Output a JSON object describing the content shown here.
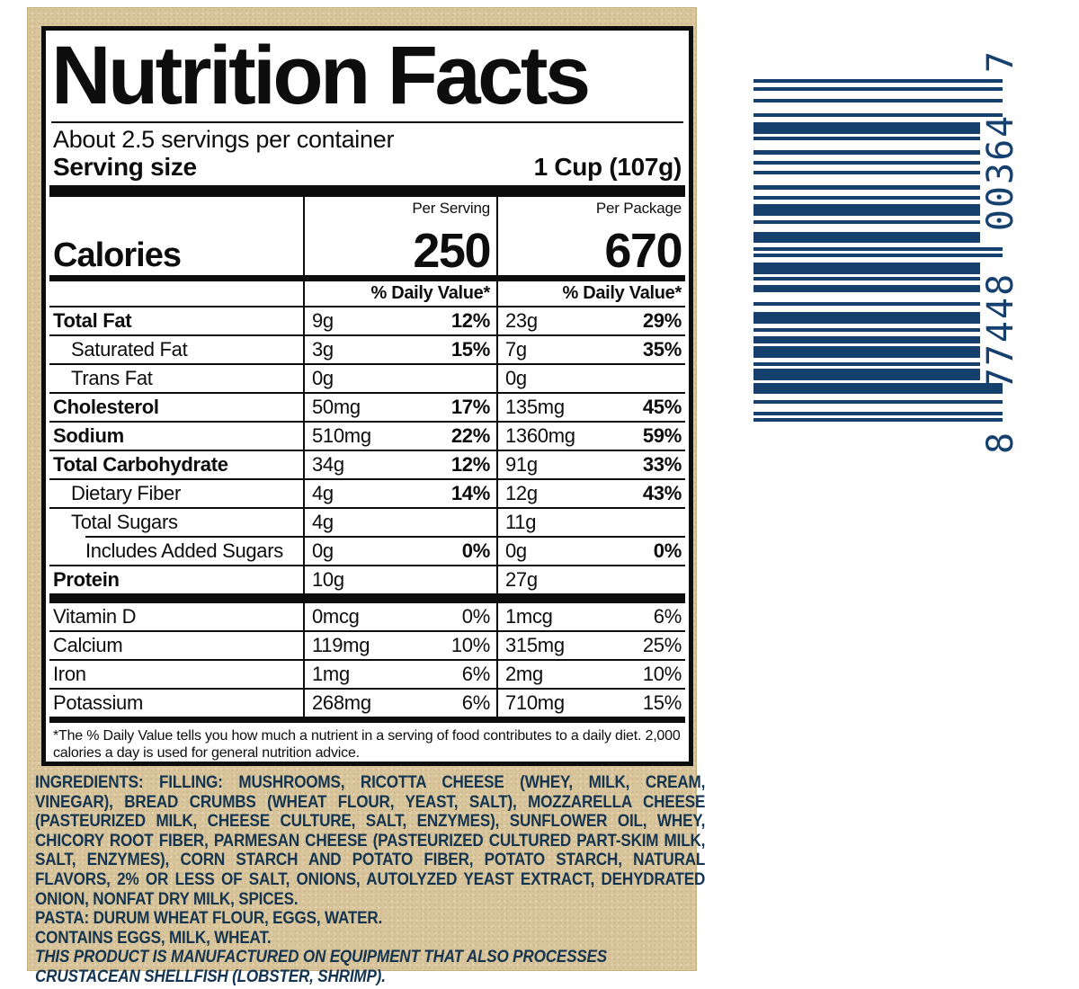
{
  "label": {
    "title": "Nutrition Facts",
    "servings_per_container": "About 2.5 servings per container",
    "serving_size_label": "Serving size",
    "serving_size_value": "1 Cup (107g)",
    "col_headers": {
      "serving": "Per Serving",
      "package": "Per Package"
    },
    "calories_label": "Calories",
    "calories_serving": "250",
    "calories_package": "670",
    "daily_value_header_serving": "% Daily Value*",
    "daily_value_header_package": "% Daily Value*",
    "rows": [
      {
        "name": "Total Fat",
        "s_amt": "9g",
        "s_dv": "12%",
        "p_amt": "23g",
        "p_dv": "29%"
      },
      {
        "name": "Saturated Fat",
        "s_amt": "3g",
        "s_dv": "15%",
        "p_amt": "7g",
        "p_dv": "35%"
      },
      {
        "name": "Trans Fat",
        "s_amt": "0g",
        "s_dv": "",
        "p_amt": "0g",
        "p_dv": ""
      },
      {
        "name": "Cholesterol",
        "s_amt": "50mg",
        "s_dv": "17%",
        "p_amt": "135mg",
        "p_dv": "45%"
      },
      {
        "name": "Sodium",
        "s_amt": "510mg",
        "s_dv": "22%",
        "p_amt": "1360mg",
        "p_dv": "59%"
      },
      {
        "name": "Total Carbohydrate",
        "s_amt": "34g",
        "s_dv": "12%",
        "p_amt": "91g",
        "p_dv": "33%"
      },
      {
        "name": "Dietary Fiber",
        "s_amt": "4g",
        "s_dv": "14%",
        "p_amt": "12g",
        "p_dv": "43%"
      },
      {
        "name": "Total Sugars",
        "s_amt": "4g",
        "s_dv": "",
        "p_amt": "11g",
        "p_dv": ""
      },
      {
        "name": "Includes Added Sugars",
        "s_amt": "0g",
        "s_dv": "0%",
        "p_amt": "0g",
        "p_dv": "0%"
      },
      {
        "name": "Protein",
        "s_amt": "10g",
        "s_dv": "",
        "p_amt": "27g",
        "p_dv": ""
      }
    ],
    "vitamin_rows": [
      {
        "name": "Vitamin D",
        "s_amt": "0mcg",
        "s_dv": "0%",
        "p_amt": "1mcg",
        "p_dv": "6%"
      },
      {
        "name": "Calcium",
        "s_amt": "119mg",
        "s_dv": "10%",
        "p_amt": "315mg",
        "p_dv": "25%"
      },
      {
        "name": "Iron",
        "s_amt": "1mg",
        "s_dv": "6%",
        "p_amt": "2mg",
        "p_dv": "10%"
      },
      {
        "name": "Potassium",
        "s_amt": "268mg",
        "s_dv": "6%",
        "p_amt": "710mg",
        "p_dv": "15%"
      }
    ],
    "footnote": "*The % Daily Value tells you how much a nutrient in a serving of food contributes to a daily diet. 2,000 calories a day is used for general nutrition advice."
  },
  "ingredients": {
    "heading": "INGREDIENTS:",
    "filling_label": "FILLING:",
    "filling_text": "MUSHROOMS, RICOTTA CHEESE (WHEY, MILK, CREAM, VINEGAR), BREAD CRUMBS (WHEAT FLOUR, YEAST, SALT), MOZZARELLA CHEESE (PASTEURIZED MILK, CHEESE CULTURE, SALT, ENZYMES), SUNFLOWER OIL, WHEY, CHICORY ROOT FIBER, PARMESAN CHEESE (PASTEURIZED CULTURED PART-SKIM MILK, SALT, ENZYMES), CORN STARCH AND POTATO FIBER, POTATO STARCH, NATURAL FLAVORS, 2% OR LESS OF SALT, ONIONS, AUTOLYZED YEAST EXTRACT, DEHYDRATED ONION, NONFAT DRY MILK, SPICES.",
    "pasta_label": "PASTA:",
    "pasta_text": "DURUM WHEAT FLOUR, EGGS, WATER.",
    "contains": "CONTAINS EGGS, MILK, WHEAT.",
    "allergen_notice": "THIS PRODUCT IS MANUFACTURED ON EQUIPMENT THAT ALSO PROCESSES CRUSTACEAN SHELLFISH (LOBSTER, SHRIMP)."
  },
  "barcode": {
    "digits": [
      "8",
      "77448",
      "00364",
      "7"
    ],
    "full_number": "8 77448 00364 7",
    "bar_color": "#16406e",
    "pattern": [
      [
        4,
        5,
        1
      ],
      [
        4,
        9,
        1
      ],
      [
        4,
        12,
        1
      ],
      [
        4,
        6,
        1
      ],
      [
        13,
        3,
        0
      ],
      [
        4,
        11,
        0
      ],
      [
        5,
        7,
        0
      ],
      [
        4,
        7,
        0
      ],
      [
        4,
        12,
        0
      ],
      [
        5,
        7,
        0
      ],
      [
        4,
        5,
        0
      ],
      [
        13,
        5,
        0
      ],
      [
        4,
        9,
        0
      ],
      [
        12,
        5,
        0
      ],
      [
        4,
        3,
        1
      ],
      [
        4,
        6,
        1
      ],
      [
        13,
        3,
        0
      ],
      [
        4,
        5,
        0
      ],
      [
        8,
        11,
        0
      ],
      [
        4,
        7,
        0
      ],
      [
        13,
        5,
        0
      ],
      [
        4,
        5,
        0
      ],
      [
        8,
        3,
        0
      ],
      [
        13,
        5,
        0
      ],
      [
        4,
        3,
        0
      ],
      [
        13,
        3,
        0
      ],
      [
        12,
        7,
        1
      ],
      [
        4,
        9,
        1
      ],
      [
        4,
        3,
        1
      ],
      [
        4,
        0,
        1
      ]
    ]
  },
  "colors": {
    "panel_bg": "#d9c59c",
    "label_bg": "#ffffff",
    "ink": "#0d0d0d",
    "barcode_navy": "#16406e",
    "ingredient_navy": "#143450"
  }
}
